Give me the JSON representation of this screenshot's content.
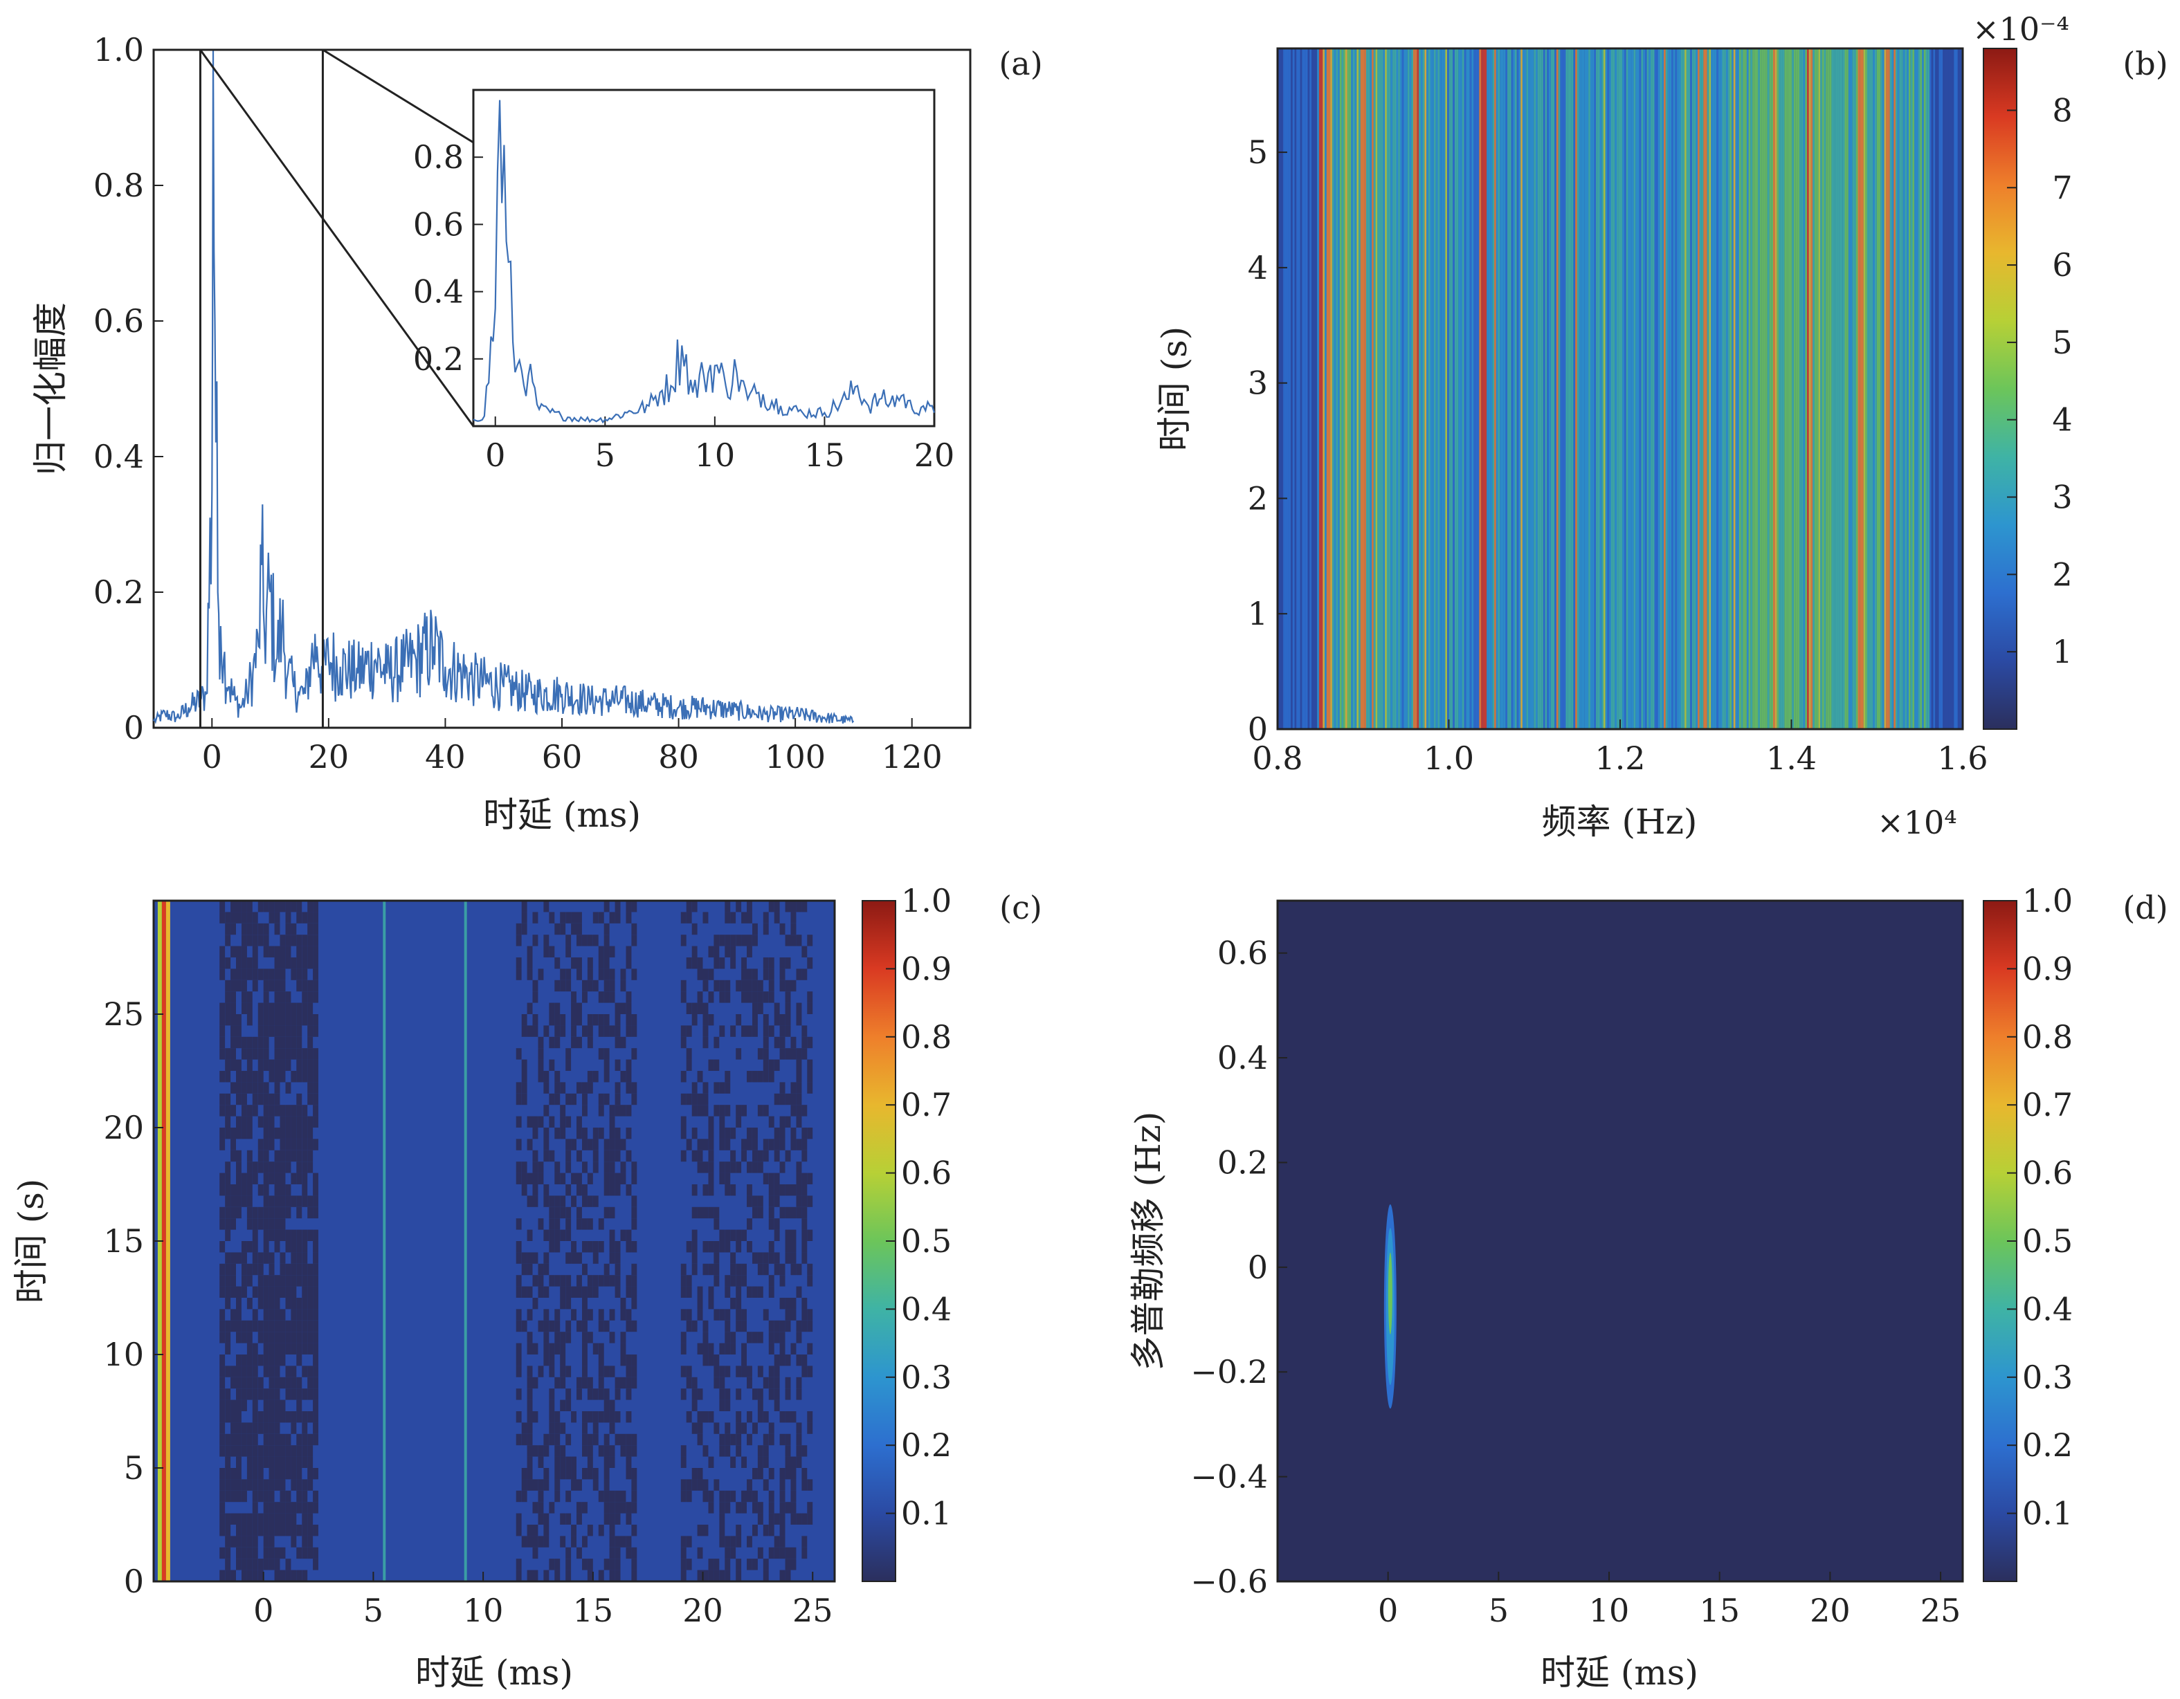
{
  "chart_data": [
    {
      "panel": "(a)",
      "type": "line",
      "xlabel": "时延 (ms)",
      "ylabel": "归一化幅度",
      "xlim": [
        -10,
        130
      ],
      "ylim": [
        0,
        1.0
      ],
      "x_ticks": [
        "0",
        "20",
        "40",
        "60",
        "80",
        "100",
        "120"
      ],
      "y_ticks": [
        "0",
        "0.2",
        "0.4",
        "0.6",
        "0.8",
        "1.0"
      ],
      "series_color": "#3b6fb6",
      "series": [
        {
          "x": [
            -10,
            -8,
            -6,
            -4,
            -2,
            -1,
            0,
            0.2,
            0.5,
            1,
            1.5,
            2,
            3,
            4,
            5,
            6,
            7,
            8,
            8.5,
            9,
            10,
            11,
            12,
            13,
            14,
            15,
            16,
            17,
            18,
            19,
            20,
            22,
            25,
            28,
            30,
            33,
            35,
            38,
            40,
            43,
            45,
            50,
            55,
            60,
            65,
            70,
            75,
            80,
            85,
            90,
            95,
            100,
            105,
            110
          ],
          "y": [
            0.01,
            0.02,
            0.015,
            0.03,
            0.04,
            0.05,
            0.35,
            1.0,
            0.6,
            0.2,
            0.15,
            0.1,
            0.06,
            0.04,
            0.03,
            0.05,
            0.08,
            0.12,
            0.24,
            0.14,
            0.2,
            0.1,
            0.15,
            0.08,
            0.06,
            0.05,
            0.05,
            0.1,
            0.12,
            0.08,
            0.1,
            0.09,
            0.08,
            0.1,
            0.08,
            0.09,
            0.1,
            0.12,
            0.09,
            0.08,
            0.07,
            0.06,
            0.05,
            0.05,
            0.04,
            0.04,
            0.035,
            0.03,
            0.03,
            0.025,
            0.02,
            0.02,
            0.015,
            0.01
          ]
        }
      ],
      "inset": {
        "xlim": [
          -1,
          20
        ],
        "ylim": [
          0,
          1.0
        ],
        "x_ticks": [
          "0",
          "5",
          "10",
          "15",
          "20"
        ],
        "y_ticks": [
          "0.2",
          "0.4",
          "0.6",
          "0.8"
        ],
        "series": [
          {
            "x": [
              -1,
              -0.5,
              0,
              0.2,
              0.5,
              0.8,
              1,
              1.5,
              2,
              3,
              4,
              5,
              6,
              7,
              7.5,
              8,
              8.5,
              9,
              9.5,
              10,
              10.5,
              11,
              11.5,
              12,
              13,
              14,
              15,
              16,
              16.5,
              17,
              17.5,
              18,
              18.5,
              19,
              19.5,
              20
            ],
            "y": [
              0.02,
              0.03,
              0.35,
              0.97,
              0.55,
              0.25,
              0.18,
              0.15,
              0.05,
              0.03,
              0.02,
              0.02,
              0.04,
              0.06,
              0.1,
              0.12,
              0.24,
              0.1,
              0.15,
              0.18,
              0.12,
              0.16,
              0.08,
              0.1,
              0.06,
              0.04,
              0.04,
              0.08,
              0.12,
              0.06,
              0.08,
              0.07,
              0.09,
              0.05,
              0.06,
              0.04
            ]
          }
        ]
      },
      "zoom_box_x": [
        -2,
        19
      ]
    },
    {
      "panel": "(b)",
      "type": "heatmap",
      "xlabel": "频率 (Hz)",
      "ylabel": "时间 (s)",
      "xlim": [
        8000,
        16000
      ],
      "ylim": [
        0,
        5.9
      ],
      "x_ticks": [
        "0.8",
        "1.0",
        "1.2",
        "1.4",
        "1.6"
      ],
      "x_multiplier": "×10⁴",
      "y_ticks": [
        "0",
        "1",
        "2",
        "3",
        "4",
        "5"
      ],
      "colorbar": {
        "multiplier": "×10⁻⁴",
        "range": [
          0,
          0.00088
        ],
        "ticks": [
          "1",
          "2",
          "3",
          "4",
          "5",
          "6",
          "7",
          "8"
        ]
      },
      "description_values": {
        "stripe_bands_x_hz": [
          8500,
          8600,
          9000,
          9600,
          10400,
          13800,
          14200,
          14800,
          15100
        ],
        "high_energy_regions": "vertical stripes between 0.85e4 and 1.52e4 Hz, strongest near 0.86e4, 0.91e4, 1.34–1.40e4 and 1.50e4 Hz"
      }
    },
    {
      "panel": "(c)",
      "type": "heatmap",
      "xlabel": "时延 (ms)",
      "ylabel": "时间 (s)",
      "xlim": [
        -5,
        26
      ],
      "ylim": [
        0,
        30
      ],
      "x_ticks": [
        "0",
        "5",
        "10",
        "15",
        "20",
        "25"
      ],
      "y_ticks": [
        "0",
        "5",
        "10",
        "15",
        "20",
        "25"
      ],
      "colorbar": {
        "range": [
          0,
          1.0
        ],
        "ticks": [
          "0.1",
          "0.2",
          "0.3",
          "0.4",
          "0.5",
          "0.6",
          "0.7",
          "0.8",
          "0.9",
          "1.0"
        ]
      },
      "description_values": {
        "peak_delay_ms": -4.5,
        "bright_lines_ms": [
          5.5,
          9.2
        ],
        "dark_bands_ms": [
          [
            -2.2,
            2.5
          ],
          [
            11.5,
            17
          ],
          [
            19,
            25
          ]
        ]
      }
    },
    {
      "panel": "(d)",
      "type": "heatmap",
      "xlabel": "时延 (ms)",
      "ylabel": "多普勒频移 (Hz)",
      "xlim": [
        -5,
        26
      ],
      "ylim": [
        -0.6,
        0.7
      ],
      "x_ticks": [
        "0",
        "5",
        "10",
        "15",
        "20",
        "25"
      ],
      "y_ticks": [
        "−0.6",
        "−0.4",
        "−0.2",
        "0",
        "0.2",
        "0.4",
        "0.6"
      ],
      "colorbar": {
        "range": [
          0,
          1.0
        ],
        "ticks": [
          "0.1",
          "0.2",
          "0.3",
          "0.4",
          "0.5",
          "0.6",
          "0.7",
          "0.8",
          "0.9",
          "1.0"
        ]
      },
      "description_values": {
        "peak_delay_ms": 0.1,
        "peak_doppler_hz": -0.05,
        "peak_extent_hz": [
          -0.27,
          0.12
        ]
      }
    }
  ],
  "panel_labels": [
    "(a)",
    "(b)",
    "(c)",
    "(d)"
  ],
  "colormap": [
    "#2b2f5d",
    "#2b4aa3",
    "#2d6fcf",
    "#2d95cf",
    "#3fb3a5",
    "#6cc55a",
    "#b7d036",
    "#e8b72e",
    "#ee7f2b",
    "#d93a22",
    "#8c1a14"
  ]
}
